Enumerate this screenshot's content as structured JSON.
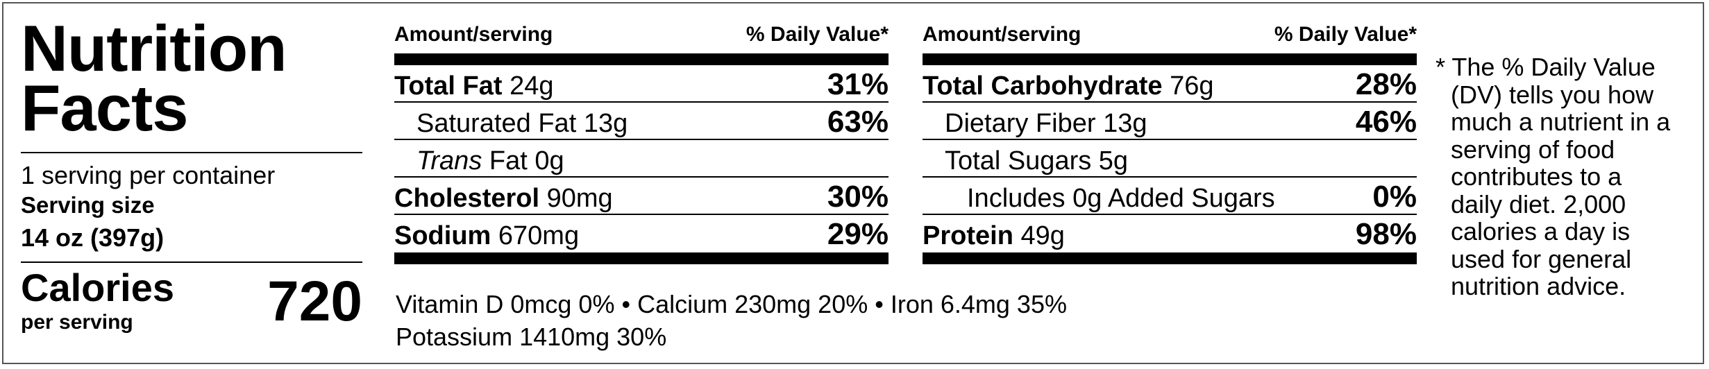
{
  "title": {
    "line1": "Nutrition",
    "line2": "Facts"
  },
  "servings_per_container": "1 serving per container",
  "serving_size": {
    "label": "Serving size",
    "value": "14 oz (397g)"
  },
  "calories": {
    "label": "Calories",
    "sublabel": "per serving",
    "value": "720"
  },
  "column_headers": {
    "amount": "Amount/serving",
    "dv": "% Daily Value*"
  },
  "left_column": [
    {
      "name": "Total Fat",
      "amount": "24g",
      "dv": "31%",
      "bold": true,
      "indent": 0
    },
    {
      "name": "Saturated Fat",
      "amount": "13g",
      "dv": "63%",
      "bold": false,
      "indent": 1
    },
    {
      "name": "Trans",
      "name_rest": "Fat",
      "amount": "0g",
      "dv": "",
      "bold": false,
      "indent": 1,
      "italic_first": true
    },
    {
      "name": "Cholesterol",
      "amount": "90mg",
      "dv": "30%",
      "bold": true,
      "indent": 0
    },
    {
      "name": "Sodium",
      "amount": "670mg",
      "dv": "29%",
      "bold": true,
      "indent": 0
    }
  ],
  "right_column": [
    {
      "name": "Total Carbohydrate",
      "amount": "76g",
      "dv": "28%",
      "bold": true,
      "indent": 0
    },
    {
      "name": "Dietary Fiber",
      "amount": "13g",
      "dv": "46%",
      "bold": false,
      "indent": 1
    },
    {
      "name": "Total Sugars",
      "amount": "5g",
      "dv": "",
      "bold": false,
      "indent": 1
    },
    {
      "name": "Includes 0g Added Sugars",
      "amount": "",
      "dv": "0%",
      "bold": false,
      "indent": 2
    },
    {
      "name": "Protein",
      "amount": "49g",
      "dv": "98%",
      "bold": true,
      "indent": 0
    }
  ],
  "vitamins": {
    "line1": "Vitamin D 0mcg 0% • Calcium 230mg 20% • Iron 6.4mg 35%",
    "line2": "Potassium 1410mg 30%"
  },
  "dv_footnote": "* The % Daily Value (DV) tells you how much a nutrient in a serving of food contributes to a daily diet. 2,000 calories a day is used for general nutrition advice."
}
